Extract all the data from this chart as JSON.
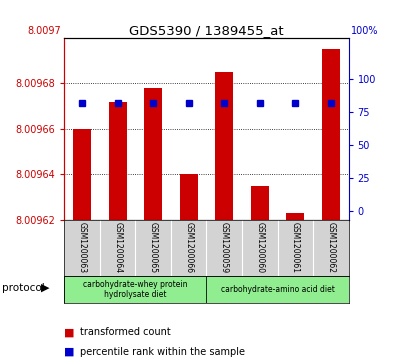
{
  "title": "GDS5390 / 1389455_at",
  "samples": [
    "GSM1200063",
    "GSM1200064",
    "GSM1200065",
    "GSM1200066",
    "GSM1200059",
    "GSM1200060",
    "GSM1200061",
    "GSM1200062"
  ],
  "bar_values": [
    8.00966,
    8.009672,
    8.009678,
    8.00964,
    8.009685,
    8.009635,
    8.009623,
    8.009695
  ],
  "percentile_values": [
    82,
    82,
    82,
    82,
    82,
    82,
    82,
    82
  ],
  "y_min": 8.00962,
  "y_max": 8.0097,
  "y_ticks": [
    8.00962,
    8.00964,
    8.00966,
    8.00968
  ],
  "y_top_label": "8.0097",
  "y2_ticks": [
    0,
    25,
    50,
    75,
    100
  ],
  "bar_color": "#cc0000",
  "percentile_color": "#0000cc",
  "protocol_groups": [
    {
      "label": "carbohydrate-whey protein\nhydrolysate diet",
      "start": 0,
      "end": 4,
      "color": "#90ee90"
    },
    {
      "label": "carbohydrate-amino acid diet",
      "start": 4,
      "end": 8,
      "color": "#90ee90"
    }
  ],
  "bg_color": "#d3d3d3",
  "legend_tc": "transformed count",
  "legend_pr": "percentile rank within the sample",
  "protocol_label": "protocol"
}
